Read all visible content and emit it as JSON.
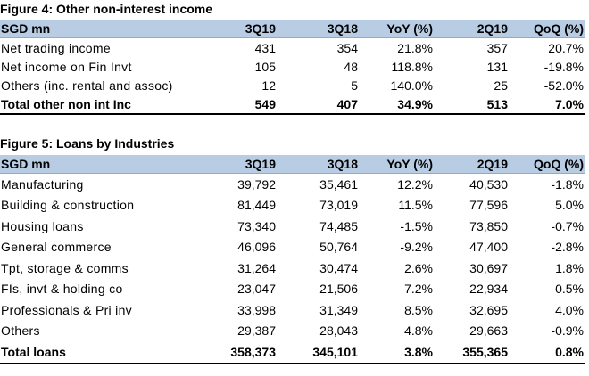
{
  "figure4": {
    "title": "Figure 4: Other non-interest income",
    "headers": [
      "SGD mn",
      "3Q19",
      "3Q18",
      "YoY (%)",
      "2Q19",
      "QoQ (%)"
    ],
    "rows": [
      [
        "Net trading income",
        "431",
        "354",
        "21.8%",
        "357",
        "20.7%"
      ],
      [
        "Net income on Fin Invt",
        "105",
        "48",
        "118.8%",
        "131",
        "-19.8%"
      ],
      [
        "Others (inc. rental and assoc)",
        "12",
        "5",
        "140.0%",
        "25",
        "-52.0%"
      ]
    ],
    "total": [
      "Total other non int Inc",
      "549",
      "407",
      "34.9%",
      "513",
      "7.0%"
    ]
  },
  "figure5": {
    "title": "Figure 5: Loans by Industries",
    "headers": [
      "SGD mn",
      "3Q19",
      "3Q18",
      "YoY (%)",
      "2Q19",
      "QoQ (%)"
    ],
    "rows": [
      [
        "Manufacturing",
        "39,792",
        "35,461",
        "12.2%",
        "40,530",
        "-1.8%"
      ],
      [
        "Building & construction",
        "81,449",
        "73,019",
        "11.5%",
        "77,596",
        "5.0%"
      ],
      [
        "Housing loans",
        "73,340",
        "74,485",
        "-1.5%",
        "73,850",
        "-0.7%"
      ],
      [
        "General commerce",
        "46,096",
        "50,764",
        "-9.2%",
        "47,400",
        "-2.8%"
      ],
      [
        "Tpt, storage & comms",
        "31,264",
        "30,474",
        "2.6%",
        "30,697",
        "1.8%"
      ],
      [
        "FIs, invt & holding co",
        "23,047",
        "21,506",
        "7.2%",
        "22,934",
        "0.5%"
      ],
      [
        "Professionals & Pri inv",
        "33,998",
        "31,349",
        "8.5%",
        "32,695",
        "4.0%"
      ],
      [
        "Others",
        "29,387",
        "28,043",
        "4.8%",
        "29,663",
        "-0.9%"
      ]
    ],
    "total": [
      "Total loans",
      "358,373",
      "345,101",
      "3.8%",
      "355,365",
      "0.8%"
    ]
  }
}
